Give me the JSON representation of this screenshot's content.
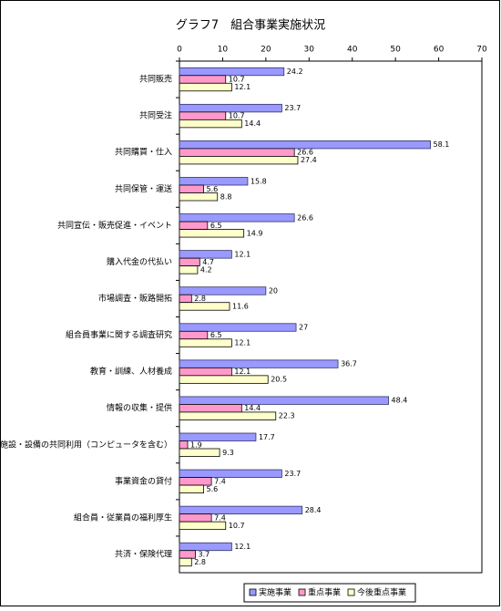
{
  "chart_data": {
    "type": "hbar",
    "title": "グラフ7　組合事業実施状況",
    "categories": [
      "共同販売",
      "共同受注",
      "共同購買・仕入",
      "共同保管・運送",
      "共同宣伝・販売促進・イベント",
      "購入代金の代払い",
      "市場調査・販路開拓",
      "組合員事業に関する調査研究",
      "教育・訓練、人材養成",
      "情報の収集・提供",
      "施設・設備の共同利用（コンピュータを含む）",
      "事業資金の貸付",
      "組合員・従業員の福利厚生",
      "共済・保険代理"
    ],
    "series": [
      {
        "name": "実施事業",
        "color": "#9999ff",
        "values": [
          24.2,
          23.7,
          58.1,
          15.8,
          26.6,
          12.1,
          20,
          27,
          36.7,
          48.4,
          17.7,
          23.7,
          28.4,
          12.1
        ]
      },
      {
        "name": "重点事業",
        "color": "#ff99cc",
        "values": [
          10.7,
          10.7,
          26.6,
          5.6,
          6.5,
          4.7,
          2.8,
          6.5,
          12.1,
          14.4,
          1.9,
          7.4,
          7.4,
          3.7
        ]
      },
      {
        "name": "今後重点事業",
        "color": "#ffffcc",
        "values": [
          12.1,
          14.4,
          27.4,
          8.8,
          14.9,
          4.2,
          11.6,
          12.1,
          20.5,
          22.3,
          9.3,
          5.6,
          10.7,
          2.8
        ]
      }
    ],
    "xlim": [
      0,
      70
    ],
    "xticks": [
      0,
      10,
      20,
      30,
      40,
      50,
      60,
      70
    ],
    "legend": "bottom"
  }
}
